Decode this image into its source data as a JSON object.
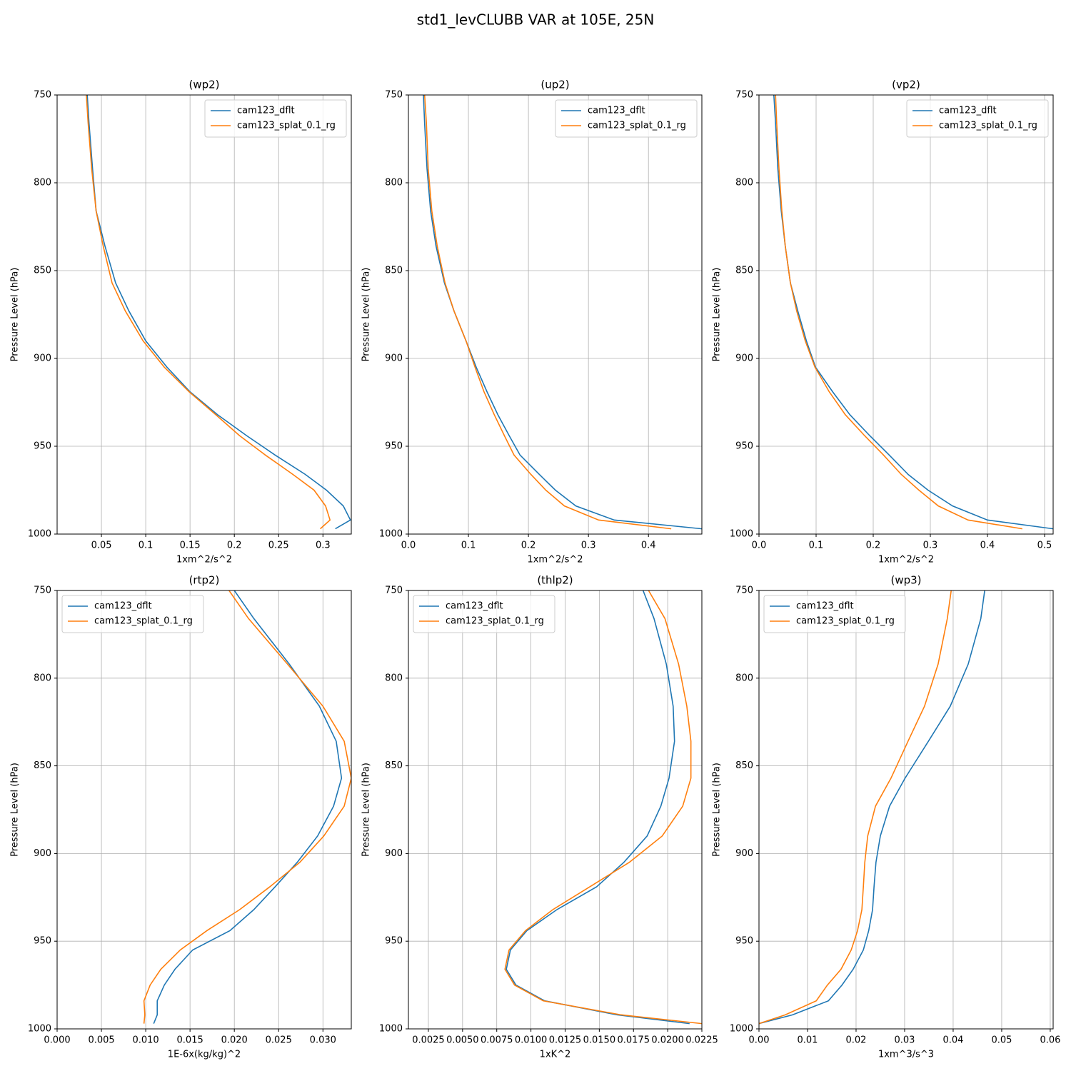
{
  "title": "std1_levCLUBB VAR at 105E, 25N",
  "chart_data": [
    {
      "type": "line",
      "title": "(wp2)",
      "xlabel": "1xm^2/s^2",
      "ylabel": "Pressure Level (hPa)",
      "grid": true,
      "legend": "upper right",
      "y_inverted": true,
      "levels": [
        750,
        766,
        792,
        816,
        836,
        857,
        873,
        890,
        905,
        919,
        932,
        944,
        955,
        966,
        975,
        984,
        992,
        997
      ],
      "xlim": [
        0,
        0.332
      ],
      "xticks": [
        0.05,
        0.1,
        0.15,
        0.2,
        0.25,
        0.3
      ],
      "ylim": [
        750,
        1000
      ],
      "yticks": [
        750,
        800,
        850,
        900,
        950,
        1000
      ],
      "series": [
        {
          "name": "cam123_dflt",
          "color": "#1f77b4",
          "values": [
            0.034,
            0.036,
            0.04,
            0.044,
            0.054,
            0.066,
            0.081,
            0.1,
            0.124,
            0.15,
            0.181,
            0.214,
            0.246,
            0.28,
            0.304,
            0.323,
            0.331,
            0.314
          ]
        },
        {
          "name": "cam123_splat_0.1_rg",
          "color": "#ff7f0e",
          "values": [
            0.033,
            0.035,
            0.039,
            0.044,
            0.052,
            0.062,
            0.077,
            0.097,
            0.121,
            0.149,
            0.179,
            0.206,
            0.235,
            0.266,
            0.29,
            0.303,
            0.308,
            0.297
          ]
        }
      ]
    },
    {
      "type": "line",
      "title": "(up2)",
      "xlabel": "1xm^2/s^2",
      "ylabel": "Pressure Level (hPa)",
      "grid": true,
      "legend": "upper right",
      "y_inverted": true,
      "levels": [
        750,
        766,
        792,
        816,
        836,
        857,
        873,
        890,
        905,
        919,
        932,
        944,
        955,
        966,
        975,
        984,
        992,
        997
      ],
      "xlim": [
        0,
        0.489
      ],
      "xticks": [
        {
          "value": 0,
          "label": "0.0"
        },
        0.1,
        0.2,
        0.3,
        0.4
      ],
      "ylim": [
        750,
        1000
      ],
      "yticks": [
        750,
        800,
        850,
        900,
        950,
        1000
      ],
      "series": [
        {
          "name": "cam123_dflt",
          "color": "#1f77b4",
          "values": [
            0.025,
            0.027,
            0.031,
            0.037,
            0.046,
            0.06,
            0.076,
            0.096,
            0.113,
            0.131,
            0.149,
            0.168,
            0.186,
            0.218,
            0.245,
            0.279,
            0.343,
            0.489
          ]
        },
        {
          "name": "cam123_splat_0.1_rg",
          "color": "#ff7f0e",
          "values": [
            0.027,
            0.03,
            0.033,
            0.039,
            0.048,
            0.061,
            0.076,
            0.096,
            0.111,
            0.126,
            0.143,
            0.16,
            0.176,
            0.204,
            0.229,
            0.26,
            0.317,
            0.438
          ]
        }
      ]
    },
    {
      "type": "line",
      "title": "(vp2)",
      "xlabel": "1xm^2/s^2",
      "ylabel": "Pressure Level (hPa)",
      "grid": true,
      "legend": "upper right",
      "y_inverted": true,
      "levels": [
        750,
        766,
        792,
        816,
        836,
        857,
        873,
        890,
        905,
        919,
        932,
        944,
        955,
        966,
        975,
        984,
        992,
        997
      ],
      "xlim": [
        0,
        0.515
      ],
      "xticks": [
        {
          "value": 0,
          "label": "0.0"
        },
        0.1,
        0.2,
        0.3,
        0.4,
        0.5
      ],
      "ylim": [
        750,
        1000
      ],
      "yticks": [
        750,
        800,
        850,
        900,
        950,
        1000
      ],
      "series": [
        {
          "name": "cam123_dflt",
          "color": "#1f77b4",
          "values": [
            0.026,
            0.029,
            0.033,
            0.039,
            0.046,
            0.055,
            0.068,
            0.083,
            0.099,
            0.129,
            0.159,
            0.194,
            0.228,
            0.261,
            0.296,
            0.339,
            0.4,
            0.515
          ]
        },
        {
          "name": "cam123_splat_0.1_rg",
          "color": "#ff7f0e",
          "values": [
            0.029,
            0.031,
            0.035,
            0.04,
            0.046,
            0.055,
            0.066,
            0.081,
            0.098,
            0.123,
            0.151,
            0.185,
            0.218,
            0.249,
            0.28,
            0.314,
            0.366,
            0.461
          ]
        }
      ]
    },
    {
      "type": "line",
      "title": "(rtp2)",
      "xlabel": "1E-6x(kg/kg)^2",
      "ylabel": "Pressure Level (hPa)",
      "grid": true,
      "legend": "upper left",
      "y_inverted": true,
      "levels": [
        750,
        766,
        792,
        816,
        836,
        857,
        873,
        890,
        905,
        919,
        932,
        944,
        955,
        966,
        975,
        984,
        992,
        997
      ],
      "xlim": [
        0,
        0.0332
      ],
      "xticks": [
        {
          "value": 0,
          "label": "0.000"
        },
        0.005,
        {
          "value": 0.01,
          "label": "0.010"
        },
        0.015,
        {
          "value": 0.02,
          "label": "0.020"
        },
        0.025,
        {
          "value": 0.03,
          "label": "0.030"
        }
      ],
      "ylim": [
        750,
        1000
      ],
      "yticks": [
        750,
        800,
        850,
        900,
        950,
        1000
      ],
      "series": [
        {
          "name": "cam123_dflt",
          "color": "#1f77b4",
          "values": [
            0.02,
            0.0222,
            0.0262,
            0.0296,
            0.0315,
            0.0321,
            0.0312,
            0.0294,
            0.0271,
            0.0246,
            0.0222,
            0.0195,
            0.0153,
            0.0133,
            0.0121,
            0.0113,
            0.0113,
            0.0109
          ]
        },
        {
          "name": "cam123_splat_0.1_rg",
          "color": "#ff7f0e",
          "values": [
            0.0194,
            0.0216,
            0.026,
            0.03,
            0.0324,
            0.0332,
            0.0324,
            0.0301,
            0.0274,
            0.024,
            0.0206,
            0.0169,
            0.0139,
            0.0117,
            0.0105,
            0.0098,
            0.0099,
            0.0098
          ]
        }
      ]
    },
    {
      "type": "line",
      "title": "(thlp2)",
      "xlabel": "1xK^2",
      "ylabel": "Pressure Level (hPa)",
      "grid": true,
      "legend": "upper left",
      "y_inverted": true,
      "levels": [
        750,
        766,
        792,
        816,
        836,
        857,
        873,
        890,
        905,
        919,
        932,
        944,
        955,
        966,
        975,
        984,
        992,
        997
      ],
      "xlim": [
        0.00104,
        0.0225
      ],
      "xticks": [
        0.0025,
        {
          "value": 0.005,
          "label": "0.0050"
        },
        0.0075,
        {
          "value": 0.01,
          "label": "0.0100"
        },
        0.0125,
        {
          "value": 0.015,
          "label": "0.0150"
        },
        0.0175,
        {
          "value": 0.02,
          "label": "0.0200"
        },
        0.0225
      ],
      "ylim": [
        750,
        1000
      ],
      "yticks": [
        750,
        800,
        850,
        900,
        950,
        1000
      ],
      "series": [
        {
          "name": "cam123_dflt",
          "color": "#1f77b4",
          "values": [
            0.0182,
            0.019,
            0.0199,
            0.0204,
            0.0205,
            0.0201,
            0.0195,
            0.0185,
            0.0168,
            0.0148,
            0.0119,
            0.0097,
            0.0085,
            0.0082,
            0.0089,
            0.011,
            0.0163,
            0.0216
          ]
        },
        {
          "name": "cam123_splat_0.1_rg",
          "color": "#ff7f0e",
          "values": [
            0.0186,
            0.0198,
            0.0208,
            0.0214,
            0.0217,
            0.0217,
            0.0211,
            0.0196,
            0.0172,
            0.0143,
            0.0116,
            0.0096,
            0.0084,
            0.0081,
            0.0088,
            0.0109,
            0.0166,
            0.0225
          ]
        }
      ]
    },
    {
      "type": "line",
      "title": "(wp3)",
      "xlabel": "1xm^3/s^3",
      "ylabel": "Pressure Level (hPa)",
      "grid": true,
      "legend": "upper left",
      "y_inverted": true,
      "levels": [
        750,
        766,
        792,
        816,
        836,
        857,
        873,
        890,
        905,
        919,
        932,
        944,
        955,
        966,
        975,
        984,
        992,
        997
      ],
      "xlim": [
        0,
        0.0606
      ],
      "xticks": [
        {
          "value": 0,
          "label": "0.00"
        },
        0.01,
        0.02,
        0.03,
        0.04,
        0.05,
        0.06
      ],
      "ylim": [
        750,
        1000
      ],
      "yticks": [
        750,
        800,
        850,
        900,
        950,
        1000
      ],
      "series": [
        {
          "name": "cam123_dflt",
          "color": "#1f77b4",
          "values": [
            0.0465,
            0.0457,
            0.0431,
            0.0394,
            0.0349,
            0.0301,
            0.0269,
            0.025,
            0.0241,
            0.0237,
            0.0234,
            0.0226,
            0.0215,
            0.0194,
            0.0171,
            0.0143,
            0.0069,
            0
          ]
        },
        {
          "name": "cam123_splat_0.1_rg",
          "color": "#ff7f0e",
          "values": [
            0.0396,
            0.0388,
            0.0369,
            0.0341,
            0.0307,
            0.0272,
            0.024,
            0.0224,
            0.0218,
            0.0215,
            0.0212,
            0.0203,
            0.019,
            0.0169,
            0.0141,
            0.0118,
            0.0054,
            0
          ]
        }
      ]
    }
  ]
}
